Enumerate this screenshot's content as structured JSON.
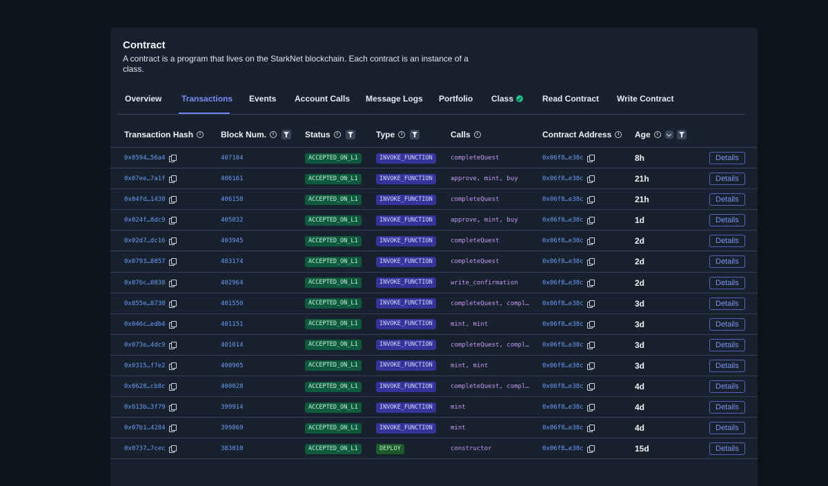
{
  "header": {
    "title": "Contract",
    "description": "A contract is a program that lives on the StarkNet blockchain. Each contract is an instance of a class."
  },
  "tabs": [
    {
      "label": "Overview",
      "active": false
    },
    {
      "label": "Transactions",
      "active": true
    },
    {
      "label": "Events",
      "active": false
    },
    {
      "label": "Account Calls",
      "active": false
    },
    {
      "label": "Message Logs",
      "active": false
    },
    {
      "label": "Portfolio",
      "active": false
    },
    {
      "label": "Class",
      "active": false,
      "verified_icon": "check-circle-icon"
    },
    {
      "label": "Read Contract",
      "active": false
    },
    {
      "label": "Write Contract",
      "active": false
    }
  ],
  "columns": {
    "hash": "Transaction Hash",
    "block": "Block Num.",
    "status": "Status",
    "type": "Type",
    "calls": "Calls",
    "address": "Contract Address",
    "age": "Age"
  },
  "details_label": "Details",
  "colors": {
    "accent": "#7b8cf5",
    "link": "#6c9cf6",
    "status_accepted": "#0f5a3e",
    "type_invoke": "#35349a",
    "type_deploy": "#1e5a2c",
    "calls": "#c69bf2"
  },
  "rows": [
    {
      "hash": "0x0594…56a4",
      "block": "407104",
      "status": "ACCEPTED_ON_L1",
      "type": "INVOKE_FUNCTION",
      "calls": "completeQuest",
      "address": "0x06f8…e38c",
      "age": "8h"
    },
    {
      "hash": "0x07ee…7a1f",
      "block": "406161",
      "status": "ACCEPTED_ON_L1",
      "type": "INVOKE_FUNCTION",
      "calls": "approve, mint, buy",
      "address": "0x06f8…e38c",
      "age": "21h"
    },
    {
      "hash": "0x04fd…1438",
      "block": "406158",
      "status": "ACCEPTED_ON_L1",
      "type": "INVOKE_FUNCTION",
      "calls": "completeQuest",
      "address": "0x06f8…e38c",
      "age": "21h"
    },
    {
      "hash": "0x024f…8dc9",
      "block": "405832",
      "status": "ACCEPTED_ON_L1",
      "type": "INVOKE_FUNCTION",
      "calls": "approve, mint, buy",
      "address": "0x06f8…e38c",
      "age": "1d"
    },
    {
      "hash": "0x02d7…dc16",
      "block": "403945",
      "status": "ACCEPTED_ON_L1",
      "type": "INVOKE_FUNCTION",
      "calls": "completeQuest",
      "address": "0x06f8…e38c",
      "age": "2d"
    },
    {
      "hash": "0x0793…8857",
      "block": "403174",
      "status": "ACCEPTED_ON_L1",
      "type": "INVOKE_FUNCTION",
      "calls": "completeQuest",
      "address": "0x06f8…e38c",
      "age": "2d"
    },
    {
      "hash": "0x076c…0838",
      "block": "402964",
      "status": "ACCEPTED_ON_L1",
      "type": "INVOKE_FUNCTION",
      "calls": "write_confirmation",
      "address": "0x06f8…e38c",
      "age": "2d"
    },
    {
      "hash": "0x055e…8730",
      "block": "401550",
      "status": "ACCEPTED_ON_L1",
      "type": "INVOKE_FUNCTION",
      "calls": "completeQuest, compl…",
      "address": "0x06f8…e38c",
      "age": "3d"
    },
    {
      "hash": "0x046c…edb4",
      "block": "401151",
      "status": "ACCEPTED_ON_L1",
      "type": "INVOKE_FUNCTION",
      "calls": "mint, mint",
      "address": "0x06f8…e38c",
      "age": "3d"
    },
    {
      "hash": "0x073e…4dc9",
      "block": "401014",
      "status": "ACCEPTED_ON_L1",
      "type": "INVOKE_FUNCTION",
      "calls": "completeQuest, compl…",
      "address": "0x06f8…e38c",
      "age": "3d"
    },
    {
      "hash": "0x0315…f7e2",
      "block": "400905",
      "status": "ACCEPTED_ON_L1",
      "type": "INVOKE_FUNCTION",
      "calls": "mint, mint",
      "address": "0x06f8…e38c",
      "age": "3d"
    },
    {
      "hash": "0x0628…cb8c",
      "block": "400028",
      "status": "ACCEPTED_ON_L1",
      "type": "INVOKE_FUNCTION",
      "calls": "completeQuest, compl…",
      "address": "0x06f8…e38c",
      "age": "4d"
    },
    {
      "hash": "0x013b…3f79",
      "block": "399914",
      "status": "ACCEPTED_ON_L1",
      "type": "INVOKE_FUNCTION",
      "calls": "mint",
      "address": "0x06f8…e38c",
      "age": "4d"
    },
    {
      "hash": "0x07b1…4284",
      "block": "399869",
      "status": "ACCEPTED_ON_L1",
      "type": "INVOKE_FUNCTION",
      "calls": "mint",
      "address": "0x06f8…e38c",
      "age": "4d"
    },
    {
      "hash": "0x0737…7cec",
      "block": "383010",
      "status": "ACCEPTED_ON_L1",
      "type": "DEPLOY",
      "calls": "constructor",
      "address": "0x06f8…e38c",
      "age": "15d"
    }
  ]
}
